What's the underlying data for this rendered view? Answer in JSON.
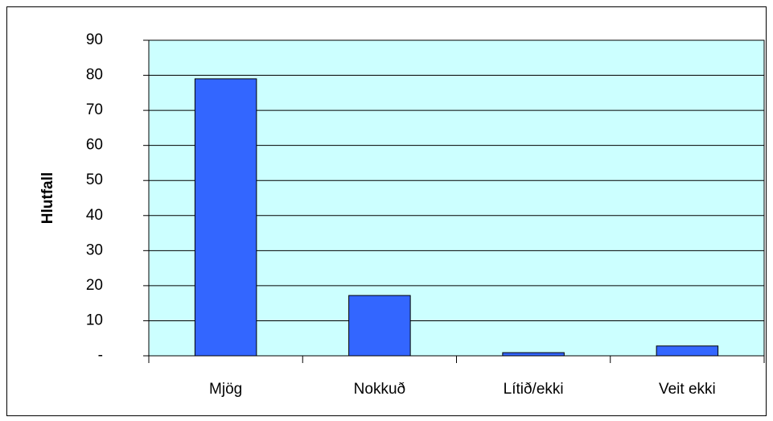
{
  "chart_data": {
    "type": "bar",
    "y_label": "Hlutfall",
    "categories": [
      "Mjög",
      "Nokkuð",
      "Lítið/ekki",
      "Veit ekki"
    ],
    "values": [
      79,
      17.2,
      0.9,
      2.8
    ],
    "color": "#3366ff",
    "ylim": [
      0,
      90
    ],
    "yticks": [
      {
        "value": 0,
        "label": "-"
      },
      10,
      20,
      30,
      40,
      50,
      60,
      70,
      80,
      90
    ],
    "grid": true
  }
}
